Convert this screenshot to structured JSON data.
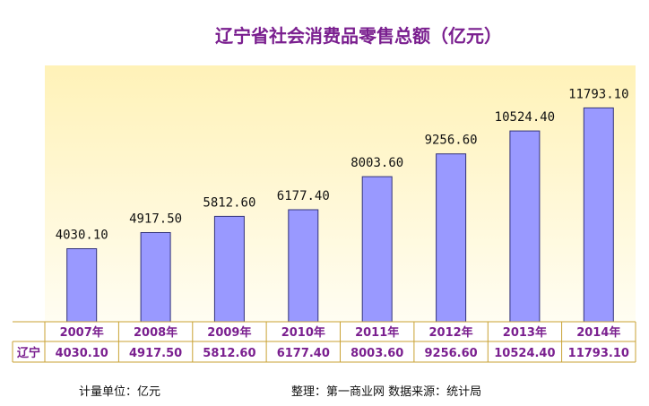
{
  "colors": {
    "title": "#7a1f8f",
    "bar_fill": "#9999ff",
    "bar_stroke": "#33337a",
    "plot_bg_top": "#fff2b8",
    "plot_bg_bottom": "#fffdf2",
    "table_text": "#7a1f8f",
    "table_line": "#c9a233"
  },
  "footer": {
    "unit_note": "计量单位：亿元",
    "source_note": "整理：第一商业网   数据来源：统计局"
  },
  "chart_data": {
    "type": "bar",
    "title": "辽宁省社会消费品零售总额（亿元）",
    "categories": [
      "2007年",
      "2008年",
      "2009年",
      "2010年",
      "2011年",
      "2012年",
      "2013年",
      "2014年"
    ],
    "series": [
      {
        "name": "辽宁",
        "values": [
          4030.1,
          4917.5,
          5812.6,
          6177.4,
          8003.6,
          9256.6,
          10524.4,
          11793.1
        ],
        "labels": [
          "4030.10",
          "4917.50",
          "5812.60",
          "6177.40",
          "8003.60",
          "9256.60",
          "10524.40",
          "11793.10"
        ]
      }
    ],
    "ylim": [
      0,
      14000
    ],
    "grid": false,
    "legend": "data-table",
    "xlabel": "",
    "ylabel": ""
  }
}
